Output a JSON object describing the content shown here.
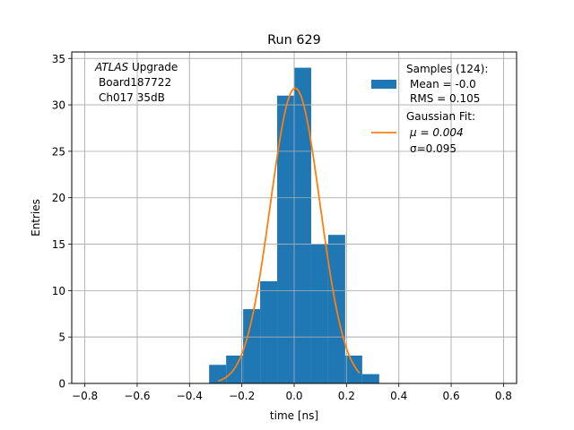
{
  "chart_data": {
    "type": "bar",
    "title": "Run 629",
    "xlabel": "time [ns]",
    "ylabel": "Entries",
    "xlim": [
      -0.85,
      0.85
    ],
    "ylim": [
      0,
      35.7
    ],
    "xticks": [
      "−0.8",
      "−0.6",
      "−0.4",
      "−0.2",
      "0.0",
      "0.2",
      "0.4",
      "0.6",
      "0.8"
    ],
    "yticks": [
      "0",
      "5",
      "10",
      "15",
      "20",
      "25",
      "30",
      "35"
    ],
    "grid": true,
    "annotation": {
      "italic": "ATLAS",
      "rest": " Upgrade",
      "line2": "Board187722",
      "line3": "Ch017 35dB"
    },
    "legend": {
      "placement": "top-right",
      "hist_label": [
        "Samples (124):",
        "Mean = -0.0",
        "RMS = 0.105"
      ],
      "fit_label": [
        "Gaussian Fit:",
        "μ = 0.004",
        "σ=0.095"
      ]
    },
    "colors": {
      "hist": "#1f77b4",
      "fit": "#ff7f0e",
      "grid": "#b0b0b0"
    },
    "histogram": {
      "bin_edges": [
        -0.325,
        -0.26,
        -0.195,
        -0.13,
        -0.065,
        0.0,
        0.065,
        0.13,
        0.195,
        0.26,
        0.325
      ],
      "counts": [
        2,
        3,
        8,
        11,
        31,
        34,
        15,
        16,
        3,
        1
      ]
    },
    "fit": {
      "x_range": [
        -0.29,
        0.25
      ],
      "amplitude": 31.8,
      "mu": 0.004,
      "sigma": 0.095
    }
  }
}
